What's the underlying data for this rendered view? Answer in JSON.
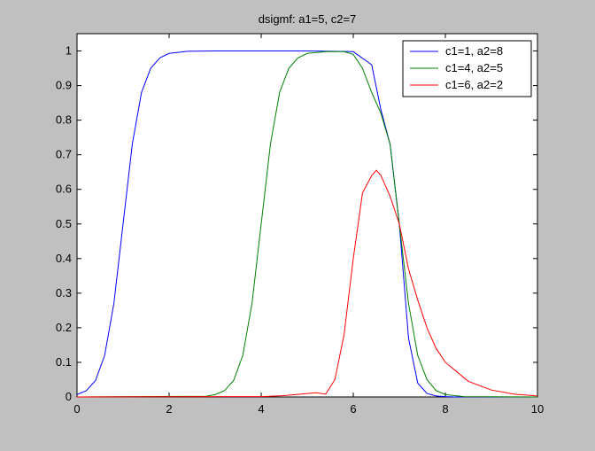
{
  "chart_data": {
    "type": "line",
    "title": "dsigmf: a1=5, c2=7",
    "xlabel": "",
    "ylabel": "",
    "xlim": [
      0,
      10
    ],
    "ylim": [
      0,
      1.05
    ],
    "x_ticks": [
      0,
      2,
      4,
      6,
      8,
      10
    ],
    "y_ticks": [
      0,
      0.1,
      0.2,
      0.3,
      0.4,
      0.5,
      0.6,
      0.7,
      0.8,
      0.9,
      1
    ],
    "grid": false,
    "legend_position": "top-right",
    "series": [
      {
        "name": "c1=1, a2=8",
        "color": "#0000ff",
        "x": [
          0,
          0.2,
          0.4,
          0.6,
          0.8,
          1.0,
          1.2,
          1.4,
          1.6,
          1.8,
          2.0,
          2.4,
          3.0,
          4.0,
          5.0,
          6.0,
          6.4,
          6.6,
          6.8,
          7.0,
          7.2,
          7.4,
          7.6,
          7.8,
          8.0,
          8.2,
          8.5,
          10
        ],
        "y": [
          0.007,
          0.018,
          0.047,
          0.12,
          0.27,
          0.5,
          0.73,
          0.88,
          0.95,
          0.98,
          0.993,
          0.999,
          1.0,
          1.0,
          1.0,
          0.998,
          0.96,
          0.83,
          0.73,
          0.5,
          0.17,
          0.04,
          0.01,
          0.003,
          0.001,
          0.0,
          0.0,
          0.0
        ]
      },
      {
        "name": "c1=4, a2=5",
        "color": "#008000",
        "x": [
          0,
          2.8,
          3.0,
          3.2,
          3.4,
          3.6,
          3.8,
          4.0,
          4.2,
          4.4,
          4.6,
          4.8,
          5.0,
          5.4,
          5.8,
          6.0,
          6.2,
          6.4,
          6.6,
          6.8,
          7.0,
          7.2,
          7.4,
          7.6,
          7.8,
          8.0,
          8.4,
          10
        ],
        "y": [
          0.0,
          0.002,
          0.007,
          0.018,
          0.047,
          0.12,
          0.27,
          0.5,
          0.73,
          0.88,
          0.95,
          0.98,
          0.993,
          0.998,
          0.998,
          0.99,
          0.95,
          0.88,
          0.82,
          0.73,
          0.5,
          0.27,
          0.12,
          0.05,
          0.018,
          0.007,
          0.001,
          0.0
        ]
      },
      {
        "name": "c1=6, a2=2",
        "color": "#ff0000",
        "x": [
          0,
          4.0,
          4.5,
          5.0,
          5.2,
          5.4,
          5.6,
          5.8,
          6.0,
          6.2,
          6.4,
          6.5,
          6.6,
          6.8,
          7.0,
          7.2,
          7.4,
          7.6,
          7.8,
          8.0,
          8.5,
          9.0,
          9.5,
          10
        ],
        "y": [
          0.0,
          0.001,
          0.004,
          0.01,
          0.012,
          0.008,
          0.05,
          0.18,
          0.4,
          0.59,
          0.64,
          0.655,
          0.64,
          0.58,
          0.5,
          0.37,
          0.28,
          0.2,
          0.14,
          0.1,
          0.045,
          0.02,
          0.008,
          0.003
        ]
      }
    ]
  }
}
